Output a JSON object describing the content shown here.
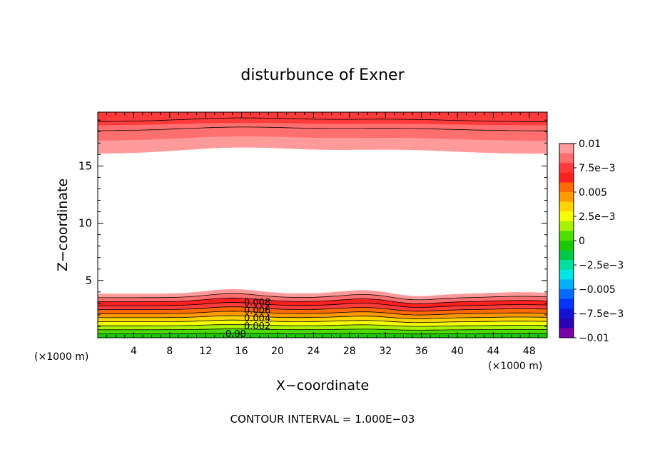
{
  "chart_data": {
    "type": "contour",
    "title": "disturbunce of Exner",
    "xlabel": "X−coordinate",
    "ylabel": "Z−coordinate",
    "x_unit_left": "(×1000 m)",
    "x_unit_right": "(×1000 m)",
    "footer": "CONTOUR INTERVAL = 1.000E−03",
    "xlim": [
      0,
      50
    ],
    "ylim": [
      0,
      19.7
    ],
    "x_ticks": [
      4,
      8,
      12,
      16,
      20,
      24,
      28,
      32,
      36,
      40,
      44,
      48
    ],
    "y_ticks": [
      5,
      10,
      15
    ],
    "contour_labels": [
      "0.008",
      "0.006",
      "0.004",
      "0.002",
      "0.00"
    ],
    "colorbar": {
      "labels": [
        "0.01",
        "7.5e−3",
        "0.005",
        "2.5e−3",
        "0",
        "−2.5e−3",
        "−0.005",
        "−7.5e−3",
        "−0.01"
      ],
      "levels": [
        -0.01,
        0.01
      ],
      "colors": [
        "#ff9a9a",
        "#ff6f6f",
        "#ff3b3b",
        "#ff1f1f",
        "#ff6a00",
        "#ff9a00",
        "#ffd400",
        "#f5ff00",
        "#a8f000",
        "#4fdc00",
        "#19c800",
        "#00c848",
        "#00e0a0",
        "#00e6e6",
        "#00b0ff",
        "#006cff",
        "#0034ff",
        "#1414d8",
        "#2a00b4",
        "#7a00a8"
      ]
    },
    "bottom_band_colors": [
      "#19c800",
      "#4fdc00",
      "#a8f000",
      "#f5ff00",
      "#ffd400",
      "#ff9a00",
      "#ff6a00",
      "#ff3b3b",
      "#ff1f1f",
      "#ff6f6f",
      "#ff9a9a"
    ],
    "top_band_colors": [
      "#ff9a9a",
      "#ff6f6f",
      "#ff3b3b"
    ]
  }
}
